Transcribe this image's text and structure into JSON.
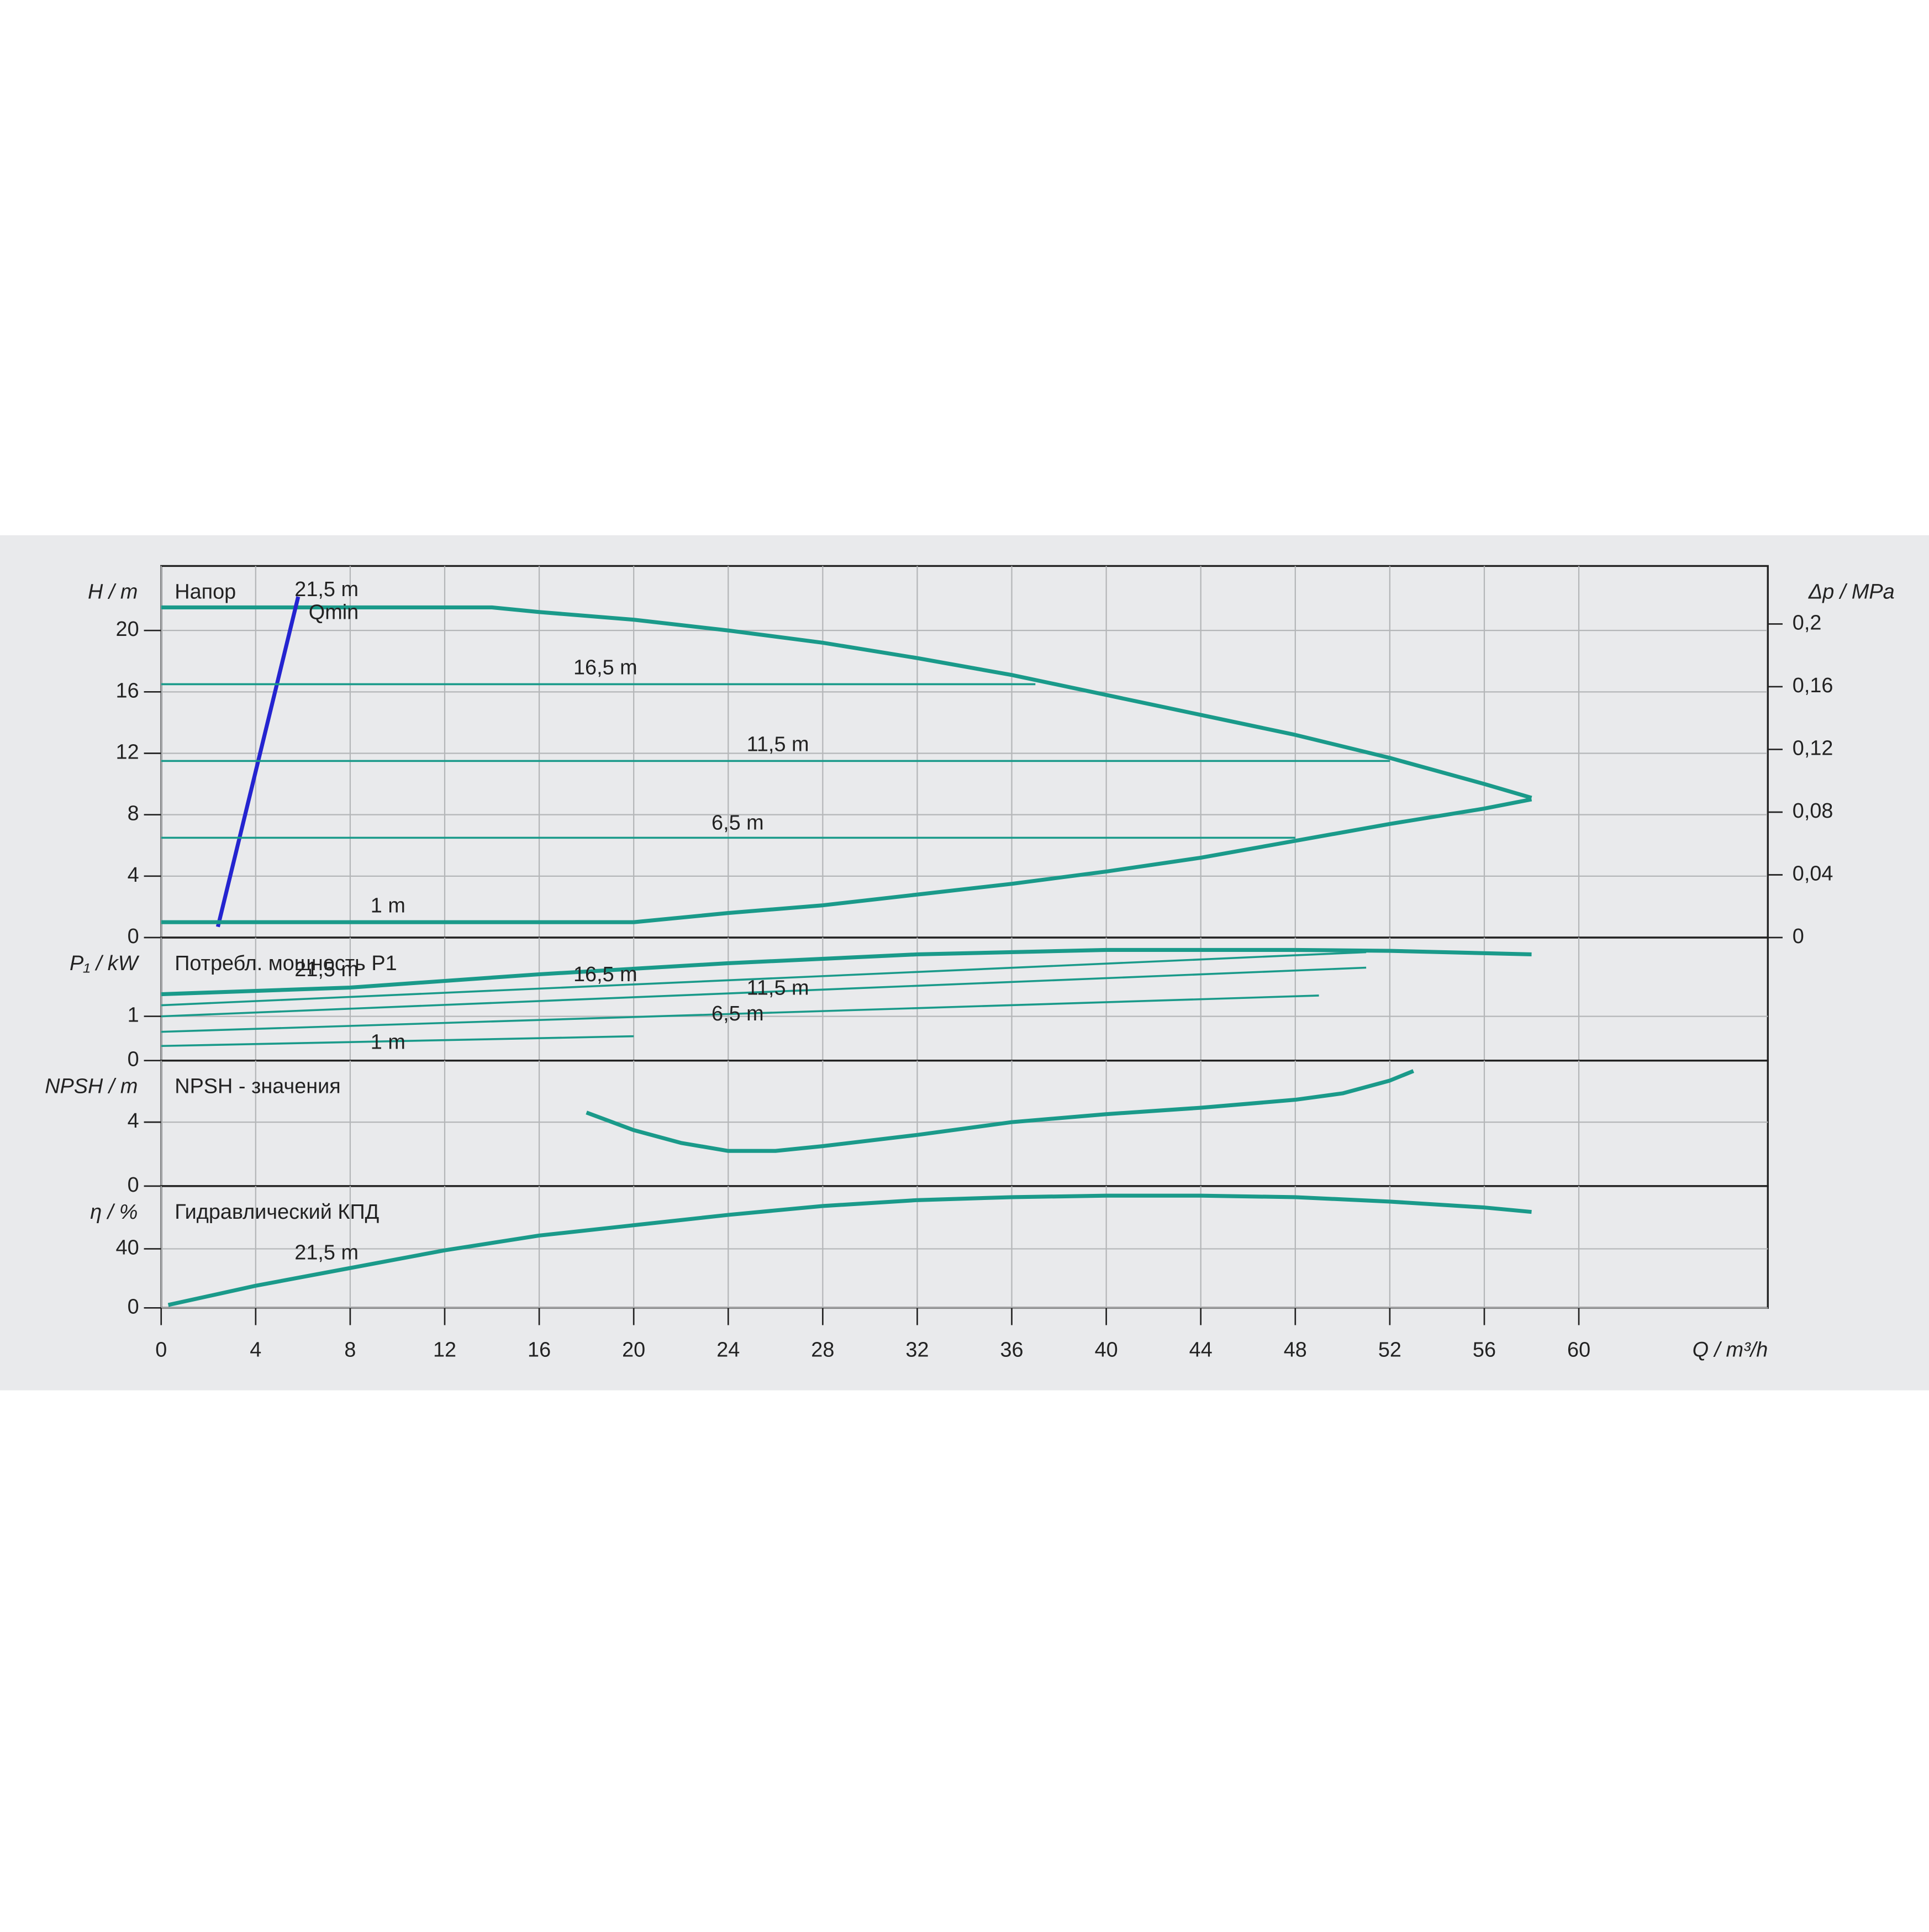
{
  "chart_data": [
    {
      "type": "line",
      "title": "Напор",
      "ylabel": "H / m",
      "y2label": "Δp / MPa",
      "ylim": [
        0,
        24.2
      ],
      "yticks": [
        0,
        4,
        8,
        12,
        16,
        20
      ],
      "y2lim": [
        0,
        0.237
      ],
      "y2ticks": [
        0,
        {
          "value": 0.04,
          "label": "0,04"
        },
        {
          "value": 0.08,
          "label": "0,08"
        },
        {
          "value": 0.12,
          "label": "0,12"
        },
        {
          "value": 0.16,
          "label": "0,16"
        },
        {
          "value": 0.2,
          "label": "0,2"
        }
      ],
      "grid": true,
      "series": [
        {
          "name": "21,5 m",
          "color": "#1a9a8a",
          "x": [
            0,
            14,
            16,
            20,
            24,
            28,
            32,
            36,
            40,
            44,
            48,
            52,
            56,
            58
          ],
          "values": [
            21.5,
            21.5,
            21.2,
            20.7,
            20,
            19.2,
            18.2,
            17.1,
            15.8,
            14.5,
            13.2,
            11.7,
            10,
            9.1
          ]
        },
        {
          "name": "Qmin",
          "color": "#2424d0",
          "x": [
            2.4,
            5.8
          ],
          "values": [
            0.7,
            22.2
          ]
        },
        {
          "name": "16,5 m",
          "color": "#1a9a8a",
          "x": [
            0,
            37
          ],
          "values": [
            16.5,
            16.5
          ]
        },
        {
          "name": "11,5 m",
          "color": "#1a9a8a",
          "x": [
            0,
            52
          ],
          "values": [
            11.5,
            11.5
          ]
        },
        {
          "name": "6,5 m",
          "color": "#1a9a8a",
          "x": [
            0,
            48
          ],
          "values": [
            6.5,
            6.5
          ]
        },
        {
          "name": "1 m",
          "color": "#1a9a8a",
          "x": [
            0,
            20,
            24,
            28,
            32,
            36,
            40,
            44,
            48,
            52,
            56,
            58
          ],
          "values": [
            1,
            1,
            1.6,
            2.1,
            2.8,
            3.5,
            4.3,
            5.2,
            6.3,
            7.4,
            8.4,
            9
          ]
        }
      ]
    },
    {
      "type": "line",
      "title": "Потребл. мощность P1",
      "ylabel": "P₁ / kW",
      "ylim": [
        0,
        2.78
      ],
      "yticks": [
        0,
        1
      ],
      "grid": true,
      "series": [
        {
          "name": "21,5 m",
          "color": "#1a9a8a",
          "x": [
            0,
            8,
            16,
            24,
            32,
            40,
            48,
            52,
            58
          ],
          "values": [
            1.5,
            1.65,
            1.95,
            2.2,
            2.4,
            2.5,
            2.5,
            2.48,
            2.4
          ]
        },
        {
          "name": "16,5 m",
          "color": "#1a9a8a",
          "x": [
            0,
            51
          ],
          "values": [
            1.25,
            2.45
          ]
        },
        {
          "name": "11,5 m",
          "color": "#1a9a8a",
          "x": [
            0,
            51
          ],
          "values": [
            1.0,
            2.1
          ]
        },
        {
          "name": "6,5 m",
          "color": "#1a9a8a",
          "x": [
            0,
            49
          ],
          "values": [
            0.65,
            1.47
          ]
        },
        {
          "name": "1 m",
          "color": "#1a9a8a",
          "x": [
            0,
            20
          ],
          "values": [
            0.33,
            0.55
          ]
        }
      ]
    },
    {
      "type": "line",
      "title": "NPSH - значения",
      "ylabel": "NPSH / m",
      "ylim": [
        0,
        7.85
      ],
      "yticks": [
        0,
        4
      ],
      "grid": true,
      "series": [
        {
          "color": "#1a9a8a",
          "x": [
            18,
            20,
            22,
            24,
            26,
            28,
            32,
            36,
            40,
            44,
            48,
            50,
            52,
            53
          ],
          "values": [
            4.6,
            3.5,
            2.7,
            2.2,
            2.2,
            2.5,
            3.2,
            4,
            4.5,
            4.9,
            5.4,
            5.8,
            6.6,
            7.2
          ]
        }
      ]
    },
    {
      "type": "line",
      "title": "Гидравлический КПД",
      "ylabel": "η / %",
      "xlabel": "Q / m³/h",
      "ylim": [
        0,
        82.5
      ],
      "yticks": [
        0,
        40
      ],
      "grid": true,
      "xlim": [
        0,
        68
      ],
      "xticks": [
        0,
        4,
        8,
        12,
        16,
        20,
        24,
        28,
        32,
        36,
        40,
        44,
        48,
        52,
        56,
        60
      ],
      "series": [
        {
          "name": "21,5 m",
          "color": "#1a9a8a",
          "x": [
            0.3,
            4,
            8,
            12,
            16,
            20,
            24,
            28,
            32,
            36,
            40,
            44,
            48,
            52,
            56,
            58
          ],
          "values": [
            2,
            15,
            27,
            39,
            49,
            56,
            63,
            69,
            73,
            75,
            76,
            76,
            75,
            72,
            68,
            65
          ]
        }
      ]
    }
  ]
}
